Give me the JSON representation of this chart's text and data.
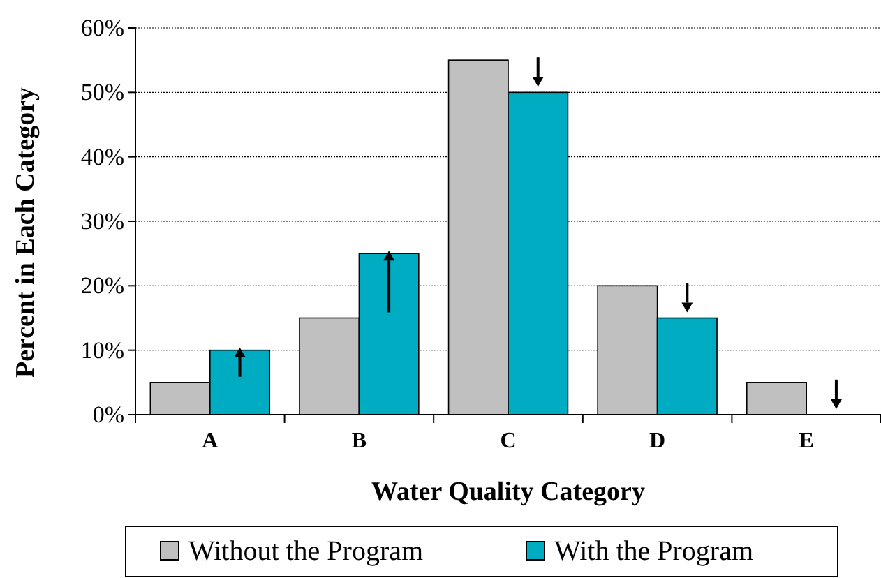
{
  "chart_data": {
    "type": "bar",
    "xlabel": "Water Quality Category",
    "ylabel": "Percent in Each Category",
    "categories": [
      "A",
      "B",
      "C",
      "D",
      "E"
    ],
    "series": [
      {
        "name": "Without the Program",
        "color": "#c0c0c0",
        "values": [
          5,
          15,
          55,
          20,
          5
        ]
      },
      {
        "name": "With the Program",
        "color": "#00acc1",
        "values": [
          10,
          25,
          50,
          15,
          0
        ]
      }
    ],
    "ylim": [
      0,
      60
    ],
    "yticks": [
      {
        "value": 0,
        "label": "0%"
      },
      {
        "value": 10,
        "label": "10%"
      },
      {
        "value": 20,
        "label": "20%"
      },
      {
        "value": 30,
        "label": "30%"
      },
      {
        "value": 40,
        "label": "40%"
      },
      {
        "value": 50,
        "label": "50%"
      },
      {
        "value": 60,
        "label": "60%"
      }
    ],
    "grid": "y",
    "legend": "bottom"
  }
}
